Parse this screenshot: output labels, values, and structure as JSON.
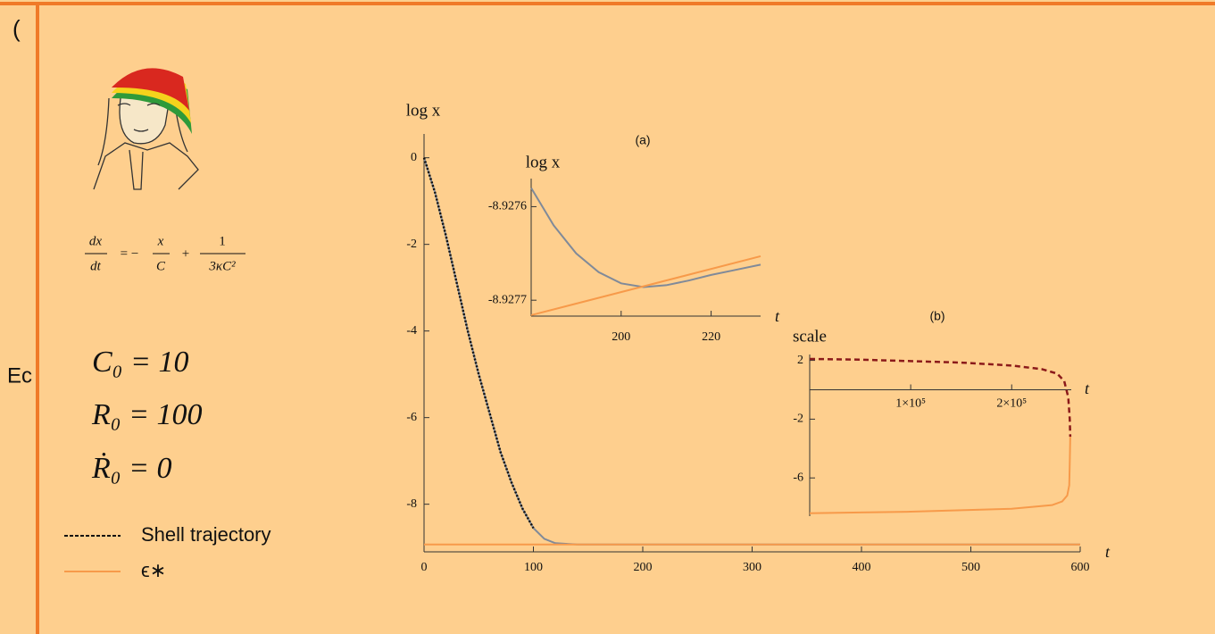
{
  "background_text": {
    "top": "(",
    "middle": "Ec"
  },
  "equation": {
    "lhs_num": "dx",
    "lhs_den": "dt",
    "op1": "= −",
    "t1_num": "x",
    "t1_den": "C",
    "op2": "+",
    "t2_num": "1",
    "t2_den": "3κC²"
  },
  "parameters": [
    "C₀ = 10",
    "R₀ = 100",
    "Ṙ₀ = 0"
  ],
  "chart_data": [
    {
      "type": "line",
      "ylabel": "log x",
      "xlabel": "t",
      "xlim": [
        0,
        600
      ],
      "ylim": [
        -9.1,
        0.55
      ],
      "xticks": [
        0,
        100,
        200,
        300,
        400,
        500,
        600
      ],
      "yticks": [
        0,
        -2,
        -4,
        -6,
        -8
      ],
      "series": [
        {
          "color": "#808a99",
          "style": "solid",
          "x": [
            0,
            10,
            20,
            30,
            40,
            50,
            60,
            70,
            80,
            90,
            100,
            110,
            120,
            140,
            600
          ],
          "values": [
            0,
            -0.8,
            -1.8,
            -2.9,
            -4.0,
            -5.0,
            -5.9,
            -6.8,
            -7.5,
            -8.1,
            -8.55,
            -8.8,
            -8.9,
            -8.93,
            -8.93
          ]
        },
        {
          "name": "ϵ∗",
          "color": "#f79a4a",
          "style": "solid",
          "x": [
            0,
            600
          ],
          "values": [
            -8.93,
            -8.93
          ]
        },
        {
          "name": "Shell trajectory",
          "color": "#111111",
          "style": "dashed",
          "x": [
            0,
            10,
            20,
            30,
            40,
            50,
            60,
            70,
            80,
            90,
            100
          ],
          "values": [
            0,
            -0.8,
            -1.8,
            -2.9,
            -4.0,
            -5.0,
            -5.9,
            -6.8,
            -7.5,
            -8.1,
            -8.55
          ]
        }
      ]
    },
    {
      "type": "line",
      "title": "(a)",
      "ylabel": "log x",
      "xlabel": "t",
      "xlim": [
        180,
        231
      ],
      "ylim": [
        -8.927717,
        -8.92757
      ],
      "xticks": [
        200,
        220
      ],
      "yticks": [
        -8.9276,
        -8.9277
      ],
      "series": [
        {
          "color": "#808a99",
          "style": "solid",
          "x": [
            180,
            185,
            190,
            195,
            200,
            205,
            210,
            215,
            220,
            225,
            231
          ],
          "values": [
            -8.92758,
            -8.92762,
            -8.92765,
            -8.92767,
            -8.927682,
            -8.927686,
            -8.927684,
            -8.927679,
            -8.927673,
            -8.927668,
            -8.927662
          ]
        },
        {
          "color": "#f79a4a",
          "style": "solid",
          "x": [
            180,
            231
          ],
          "values": [
            -8.927716,
            -8.927653
          ]
        }
      ]
    },
    {
      "type": "line",
      "title": "(b)",
      "ylabel": "scale",
      "xlabel": "t",
      "xlim": [
        0,
        259000
      ],
      "ylim": [
        -8.6,
        2.4
      ],
      "xticks": [
        {
          "value": 100000,
          "label": "1×10⁵"
        },
        {
          "value": 200000,
          "label": "2×10⁵"
        }
      ],
      "yticks": [
        2,
        -2,
        -6
      ],
      "series": [
        {
          "color": "#8b1a1a",
          "style": "dashed",
          "x": [
            0,
            50000,
            100000,
            150000,
            200000,
            230000,
            245000,
            252000,
            256000,
            257500,
            258000
          ],
          "values": [
            2.1,
            2.05,
            1.95,
            1.85,
            1.65,
            1.4,
            1.1,
            0.6,
            -0.5,
            -2,
            -3.2
          ]
        },
        {
          "color": "#f79a4a",
          "style": "solid",
          "x": [
            258000,
            257500,
            257000,
            255000,
            250000,
            240000,
            200000,
            150000,
            100000,
            50000,
            0
          ],
          "values": [
            -3.2,
            -5,
            -6.5,
            -7.2,
            -7.6,
            -7.85,
            -8.1,
            -8.2,
            -8.3,
            -8.35,
            -8.4
          ]
        }
      ]
    }
  ]
}
